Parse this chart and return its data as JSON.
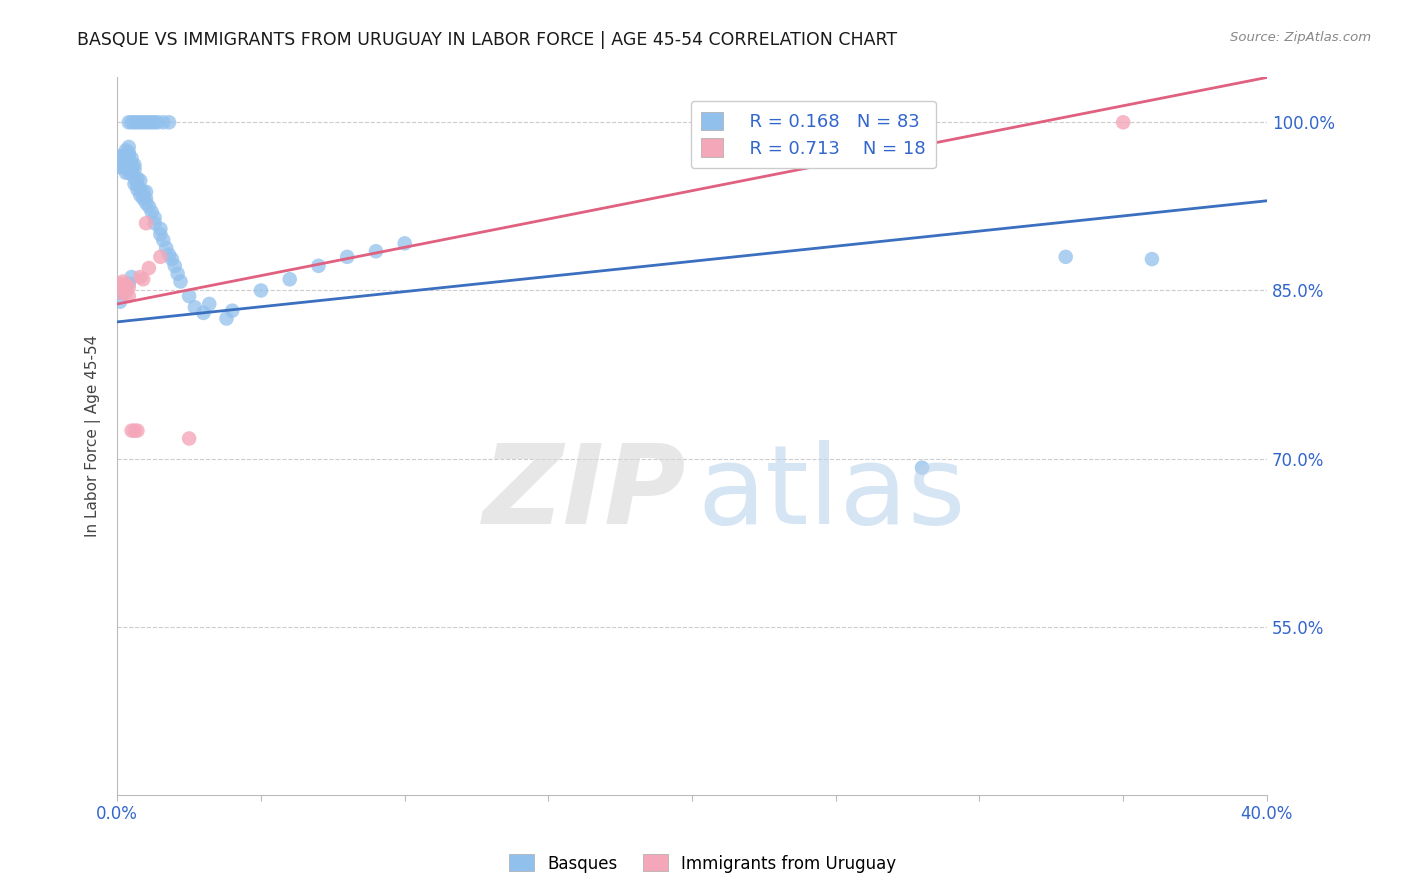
{
  "title": "BASQUE VS IMMIGRANTS FROM URUGUAY IN LABOR FORCE | AGE 45-54 CORRELATION CHART",
  "source": "Source: ZipAtlas.com",
  "ylabel": "In Labor Force | Age 45-54",
  "xlim": [
    0.0,
    0.4
  ],
  "ylim": [
    0.4,
    1.04
  ],
  "blue_color": "#92C0EC",
  "pink_color": "#F4A7B9",
  "blue_line_color": "#3B6FBF",
  "pink_line_color": "#E06080",
  "legend_r_blue": "0.168",
  "legend_n_blue": "83",
  "legend_r_pink": "0.713",
  "legend_n_pink": "18",
  "legend_label_blue": "Basques",
  "legend_label_pink": "Immigrants from Uruguay",
  "blue_line_x0": 0.0,
  "blue_line_y0": 0.822,
  "blue_line_x1": 0.4,
  "blue_line_y1": 0.93,
  "pink_line_x0": 0.0,
  "pink_line_y0": 0.838,
  "pink_line_x1": 0.4,
  "pink_line_y1": 1.04,
  "blue_x": [
    0.001,
    0.001,
    0.002,
    0.002,
    0.003,
    0.003,
    0.003,
    0.003,
    0.003,
    0.004,
    0.004,
    0.004,
    0.004,
    0.004,
    0.004,
    0.004,
    0.004,
    0.005,
    0.005,
    0.005,
    0.005,
    0.005,
    0.006,
    0.006,
    0.006,
    0.006,
    0.007,
    0.007,
    0.007,
    0.008,
    0.008,
    0.008,
    0.009,
    0.009,
    0.01,
    0.01,
    0.01,
    0.011,
    0.012,
    0.013,
    0.013,
    0.015,
    0.015,
    0.016,
    0.017,
    0.018,
    0.019,
    0.02,
    0.021,
    0.022,
    0.025,
    0.027,
    0.03,
    0.032,
    0.038,
    0.04,
    0.05,
    0.06,
    0.07,
    0.08,
    0.09,
    0.1,
    0.004,
    0.005,
    0.006,
    0.007,
    0.008,
    0.009,
    0.01,
    0.011,
    0.012,
    0.013,
    0.014,
    0.016,
    0.018,
    0.28,
    0.33,
    0.36,
    0.001,
    0.002,
    0.003,
    0.004,
    0.005
  ],
  "blue_y": [
    0.96,
    0.97,
    0.96,
    0.97,
    0.955,
    0.96,
    0.965,
    0.97,
    0.975,
    0.955,
    0.958,
    0.96,
    0.963,
    0.965,
    0.97,
    0.973,
    0.978,
    0.955,
    0.958,
    0.96,
    0.963,
    0.968,
    0.945,
    0.95,
    0.958,
    0.962,
    0.94,
    0.945,
    0.95,
    0.935,
    0.94,
    0.948,
    0.932,
    0.938,
    0.928,
    0.932,
    0.938,
    0.925,
    0.92,
    0.91,
    0.915,
    0.9,
    0.905,
    0.895,
    0.888,
    0.882,
    0.878,
    0.872,
    0.865,
    0.858,
    0.845,
    0.835,
    0.83,
    0.838,
    0.825,
    0.832,
    0.85,
    0.86,
    0.872,
    0.88,
    0.885,
    0.892,
    1.0,
    1.0,
    1.0,
    1.0,
    1.0,
    1.0,
    1.0,
    1.0,
    1.0,
    1.0,
    1.0,
    1.0,
    1.0,
    0.692,
    0.88,
    0.878,
    0.84,
    0.848,
    0.852,
    0.856,
    0.862
  ],
  "pink_x": [
    0.001,
    0.001,
    0.002,
    0.002,
    0.003,
    0.003,
    0.004,
    0.004,
    0.005,
    0.006,
    0.007,
    0.008,
    0.009,
    0.01,
    0.011,
    0.015,
    0.025,
    0.35
  ],
  "pink_y": [
    0.848,
    0.856,
    0.852,
    0.858,
    0.848,
    0.855,
    0.845,
    0.853,
    0.725,
    0.725,
    0.725,
    0.862,
    0.86,
    0.91,
    0.87,
    0.88,
    0.718,
    1.0
  ]
}
